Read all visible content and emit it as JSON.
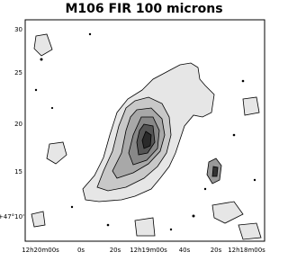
{
  "title": "M106 FIR 100 microns",
  "y_axis": {
    "ticks": [
      "30",
      "25",
      "20",
      "15",
      "+47°10'"
    ]
  },
  "x_axis": {
    "ticks": [
      "12h20m00s",
      "0s",
      "20s",
      "12h19m00s",
      "40s",
      "20s",
      "12h18m00s"
    ]
  }
}
